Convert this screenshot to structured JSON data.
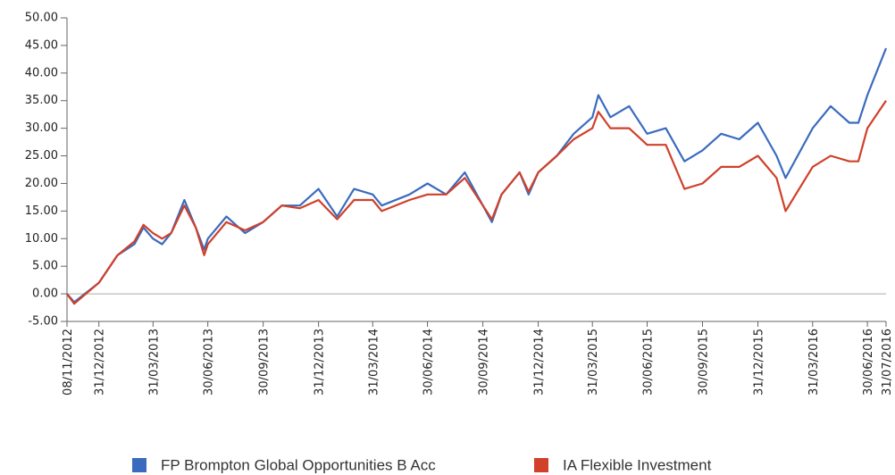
{
  "chart_data": {
    "type": "line",
    "x": [
      "08/11/2012",
      "20/11/2012",
      "31/12/2012",
      "31/01/2013",
      "28/02/2013",
      "15/03/2013",
      "31/03/2013",
      "15/04/2013",
      "30/04/2013",
      "22/05/2013",
      "10/06/2013",
      "24/06/2013",
      "30/06/2013",
      "31/07/2013",
      "31/08/2013",
      "30/09/2013",
      "31/10/2013",
      "30/11/2013",
      "31/12/2013",
      "31/01/2014",
      "28/02/2014",
      "31/03/2014",
      "15/04/2014",
      "31/05/2014",
      "30/06/2014",
      "31/07/2014",
      "31/08/2014",
      "15/10/2014",
      "31/10/2014",
      "30/11/2014",
      "15/12/2014",
      "31/12/2014",
      "31/01/2015",
      "28/02/2015",
      "31/03/2015",
      "10/04/2015",
      "30/04/2015",
      "31/05/2015",
      "30/06/2015",
      "31/07/2015",
      "31/08/2015",
      "30/09/2015",
      "31/10/2015",
      "30/11/2015",
      "31/12/2015",
      "31/01/2016",
      "15/02/2016",
      "31/03/2016",
      "30/04/2016",
      "31/05/2016",
      "15/06/2016",
      "30/06/2016",
      "31/07/2016"
    ],
    "series": [
      {
        "name": "FP Brompton Global Opportunities B Acc",
        "color": "#3a6bbf",
        "values": [
          0,
          -1.5,
          2,
          7,
          9,
          12,
          10,
          9,
          11,
          17,
          12,
          8,
          10,
          14,
          11,
          13,
          16,
          16,
          19,
          14,
          19,
          18,
          16,
          18,
          20,
          18,
          22,
          13,
          18,
          22,
          18,
          22,
          25,
          29,
          32,
          36,
          32,
          34,
          29,
          30,
          24,
          26,
          29,
          28,
          31,
          25,
          21,
          30,
          34,
          31,
          31,
          36,
          44.5
        ]
      },
      {
        "name": "IA Flexible Investment",
        "color": "#d0402a",
        "values": [
          0,
          -1.8,
          2,
          7,
          9.5,
          12.5,
          11,
          10,
          11,
          16,
          12,
          7,
          9,
          13,
          11.5,
          13,
          16,
          15.5,
          17,
          13.5,
          17,
          17,
          15,
          17,
          18,
          18,
          21,
          13.5,
          18,
          22,
          18.5,
          22,
          25,
          28,
          30,
          33,
          30,
          30,
          27,
          27,
          19,
          20,
          23,
          23,
          25,
          21,
          15,
          23,
          25,
          24,
          24,
          30,
          35
        ]
      }
    ],
    "xlim": [
      "08/11/2012",
      "31/07/2016"
    ],
    "xticks": [
      "08/11/2012",
      "31/12/2012",
      "31/03/2013",
      "30/06/2013",
      "30/09/2013",
      "31/12/2013",
      "31/03/2014",
      "30/06/2014",
      "30/09/2014",
      "31/12/2014",
      "31/03/2015",
      "30/06/2015",
      "30/09/2015",
      "31/12/2015",
      "31/03/2016",
      "30/06/2016",
      "31/07/2016"
    ],
    "ylim": [
      -5,
      50
    ],
    "yticks": [
      {
        "value": -5,
        "label": "-5.00"
      },
      {
        "value": 0,
        "label": "0.00"
      },
      {
        "value": 5,
        "label": "5.00"
      },
      {
        "value": 10,
        "label": "10.00"
      },
      {
        "value": 15,
        "label": "15.00"
      },
      {
        "value": 20,
        "label": "20.00"
      },
      {
        "value": 25,
        "label": "25.00"
      },
      {
        "value": 30,
        "label": "30.00"
      },
      {
        "value": 35,
        "label": "35.00"
      },
      {
        "value": 40,
        "label": "40.00"
      },
      {
        "value": 45,
        "label": "45.00"
      },
      {
        "value": 50,
        "label": "50.00"
      }
    ]
  }
}
